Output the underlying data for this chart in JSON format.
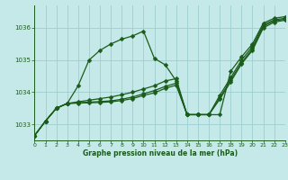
{
  "background_color": "#c5e8e8",
  "grid_color": "#9ecece",
  "line_color": "#1a5c1a",
  "xlim": [
    0,
    23
  ],
  "ylim": [
    1032.5,
    1036.7
  ],
  "yticks": [
    1033,
    1034,
    1035,
    1036
  ],
  "xticks": [
    0,
    1,
    2,
    3,
    4,
    5,
    6,
    7,
    8,
    9,
    10,
    11,
    12,
    13,
    14,
    15,
    16,
    17,
    18,
    19,
    20,
    21,
    22,
    23
  ],
  "lines": [
    {
      "x": [
        0,
        1,
        2,
        3,
        4,
        5,
        6,
        7,
        8,
        9,
        10,
        11,
        12,
        13,
        14,
        15,
        16,
        17,
        18,
        19,
        20,
        21,
        22,
        23
      ],
      "y": [
        1032.65,
        1033.1,
        1033.5,
        1033.65,
        1034.2,
        1035.0,
        1035.3,
        1035.5,
        1035.65,
        1035.75,
        1035.9,
        1035.05,
        1034.85,
        1034.35,
        1033.3,
        1033.3,
        1033.3,
        1033.3,
        1034.65,
        1035.1,
        1035.5,
        1036.15,
        1036.3,
        1036.35
      ]
    },
    {
      "x": [
        0,
        1,
        2,
        3,
        4,
        5,
        6,
        7,
        8,
        9,
        10,
        11,
        12,
        13,
        14,
        15,
        16,
        17,
        18,
        19,
        20,
        21,
        22,
        23
      ],
      "y": [
        1032.65,
        1033.1,
        1033.5,
        1033.65,
        1033.7,
        1033.75,
        1033.8,
        1033.85,
        1033.92,
        1034.0,
        1034.1,
        1034.2,
        1034.35,
        1034.42,
        1033.3,
        1033.3,
        1033.3,
        1033.9,
        1034.45,
        1035.0,
        1035.42,
        1036.1,
        1036.25,
        1036.3
      ]
    },
    {
      "x": [
        0,
        1,
        2,
        3,
        4,
        5,
        6,
        7,
        8,
        9,
        10,
        11,
        12,
        13,
        14,
        15,
        16,
        17,
        18,
        19,
        20,
        21,
        22,
        23
      ],
      "y": [
        1032.65,
        1033.1,
        1033.5,
        1033.65,
        1033.67,
        1033.69,
        1033.71,
        1033.73,
        1033.78,
        1033.85,
        1033.95,
        1034.05,
        1034.18,
        1034.28,
        1033.3,
        1033.3,
        1033.3,
        1033.82,
        1034.38,
        1034.92,
        1035.35,
        1036.05,
        1036.22,
        1036.27
      ]
    },
    {
      "x": [
        0,
        1,
        2,
        3,
        4,
        5,
        6,
        7,
        8,
        9,
        10,
        11,
        12,
        13,
        14,
        15,
        16,
        17,
        18,
        19,
        20,
        21,
        22,
        23
      ],
      "y": [
        1032.65,
        1033.1,
        1033.5,
        1033.65,
        1033.66,
        1033.67,
        1033.68,
        1033.7,
        1033.74,
        1033.8,
        1033.9,
        1033.98,
        1034.12,
        1034.22,
        1033.3,
        1033.3,
        1033.3,
        1033.78,
        1034.32,
        1034.88,
        1035.3,
        1036.0,
        1036.18,
        1036.24
      ]
    }
  ],
  "xlabel": "Graphe pression niveau de la mer (hPa)",
  "marker": "D",
  "markersize": 2.5,
  "linewidth": 0.9
}
